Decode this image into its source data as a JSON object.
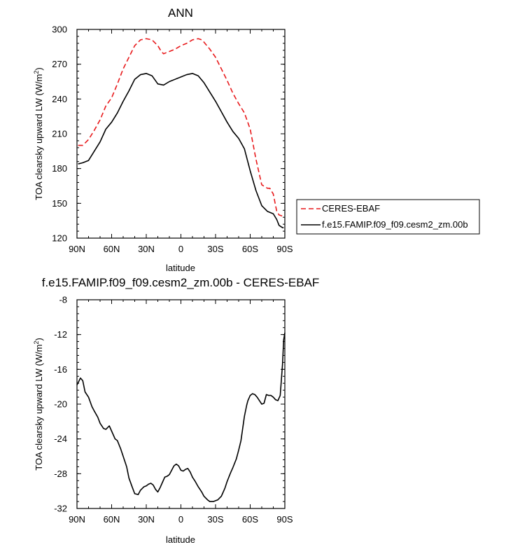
{
  "chart_data": [
    {
      "type": "line",
      "title": "ANN",
      "xlabel": "latitude",
      "ylabel_main": "TOA clearsky upward LW (W/m",
      "ylabel_sup": "2",
      "ylabel_tail": ")",
      "xlim": [
        90,
        -90
      ],
      "ylim": [
        120,
        300
      ],
      "xticks": [
        90,
        60,
        30,
        0,
        -30,
        -60,
        -90
      ],
      "xtick_labels": [
        "90N",
        "60N",
        "30N",
        "0",
        "30S",
        "60S",
        "90S"
      ],
      "yticks": [
        120,
        150,
        180,
        210,
        240,
        270,
        300
      ],
      "ytick_labels": [
        "120",
        "150",
        "180",
        "210",
        "240",
        "270",
        "300"
      ],
      "legend_placement": "right",
      "series": [
        {
          "name": "CERES-EBAF",
          "color": "#e8191b",
          "style": "dashed",
          "x": [
            89,
            85,
            80,
            75,
            70,
            65,
            60,
            55,
            50,
            45,
            40,
            35,
            30,
            25,
            20,
            17,
            15,
            10,
            5,
            0,
            -5,
            -10,
            -15,
            -18,
            -20,
            -25,
            -30,
            -35,
            -40,
            -45,
            -50,
            -55,
            -60,
            -65,
            -70,
            -75,
            -77,
            -80,
            -83,
            -85,
            -88,
            -89
          ],
          "values": [
            200,
            200,
            205,
            213,
            222,
            234,
            241,
            253,
            266,
            276,
            286,
            291,
            292,
            291,
            286,
            281,
            279,
            281,
            283,
            286,
            288,
            291,
            292,
            291,
            289,
            283,
            276,
            266,
            256,
            245,
            236,
            228,
            214,
            188,
            166,
            163,
            163,
            158,
            143,
            140,
            139,
            139
          ]
        },
        {
          "name": "f.e15.FAMIP.f09_f09.cesm2_zm.00b",
          "color": "#000000",
          "style": "solid",
          "x": [
            89,
            85,
            80,
            75,
            70,
            65,
            60,
            55,
            50,
            45,
            40,
            35,
            30,
            25,
            20,
            15,
            10,
            5,
            0,
            -5,
            -10,
            -15,
            -20,
            -25,
            -30,
            -35,
            -40,
            -45,
            -50,
            -55,
            -60,
            -65,
            -70,
            -75,
            -80,
            -83,
            -85,
            -88,
            -89
          ],
          "values": [
            184,
            185,
            187,
            195,
            203,
            214,
            220,
            228,
            238,
            247,
            257,
            261,
            262,
            260,
            253,
            252,
            255,
            257,
            259,
            261,
            262,
            260,
            254,
            246,
            238,
            229,
            220,
            212,
            206,
            197,
            178,
            161,
            148,
            143,
            141,
            136,
            131,
            129,
            129
          ]
        }
      ]
    },
    {
      "type": "line",
      "title": "f.e15.FAMIP.f09_f09.cesm2_zm.00b - CERES-EBAF",
      "xlabel": "latitude",
      "ylabel_main": "TOA clearsky upward LW (W/m",
      "ylabel_sup": "2",
      "ylabel_tail": ")",
      "xlim": [
        90,
        -90
      ],
      "ylim": [
        -32,
        -8
      ],
      "xticks": [
        90,
        60,
        30,
        0,
        -30,
        -60,
        -90
      ],
      "xtick_labels": [
        "90N",
        "60N",
        "30N",
        "0",
        "30S",
        "60S",
        "90S"
      ],
      "yticks": [
        -32,
        -28,
        -24,
        -20,
        -16,
        -12,
        -8
      ],
      "ytick_labels": [
        "-32",
        "-28",
        "-24",
        "-20",
        "-16",
        "-12",
        "-8"
      ],
      "series": [
        {
          "name": "",
          "color": "#000000",
          "style": "solid",
          "x": [
            90,
            87,
            85,
            83,
            80,
            77,
            75,
            72,
            70,
            67,
            65,
            62,
            60,
            57,
            55,
            52,
            50,
            47,
            45,
            42,
            40,
            37,
            35,
            32,
            30,
            28,
            26,
            24,
            22,
            20,
            18,
            16,
            14,
            12,
            10,
            8,
            6,
            4,
            2,
            0,
            -2,
            -4,
            -6,
            -8,
            -10,
            -12,
            -15,
            -18,
            -20,
            -23,
            -25,
            -28,
            -30,
            -32,
            -35,
            -38,
            -40,
            -43,
            -45,
            -48,
            -50,
            -52,
            -55,
            -57,
            -58,
            -60,
            -62,
            -64,
            -66,
            -68,
            -70,
            -72,
            -74,
            -76,
            -78,
            -80,
            -82,
            -84,
            -86,
            -87,
            -88,
            -89,
            -90
          ],
          "values": [
            -17.8,
            -17.0,
            -17.3,
            -18.6,
            -19.2,
            -20.3,
            -20.8,
            -21.5,
            -22.2,
            -22.8,
            -22.9,
            -22.5,
            -23.1,
            -24.0,
            -24.2,
            -25.2,
            -26.0,
            -27.2,
            -28.5,
            -29.6,
            -30.3,
            -30.4,
            -29.9,
            -29.5,
            -29.4,
            -29.2,
            -29.1,
            -29.3,
            -29.8,
            -30.1,
            -29.6,
            -29.0,
            -28.4,
            -28.3,
            -28.1,
            -27.6,
            -27.1,
            -26.9,
            -27.1,
            -27.6,
            -27.7,
            -27.5,
            -27.4,
            -27.8,
            -28.4,
            -28.8,
            -29.5,
            -30.1,
            -30.6,
            -31.0,
            -31.2,
            -31.2,
            -31.1,
            -31.0,
            -30.6,
            -29.7,
            -28.9,
            -27.9,
            -27.3,
            -26.3,
            -25.3,
            -24.2,
            -21.4,
            -20.1,
            -19.6,
            -19.0,
            -18.8,
            -18.9,
            -19.2,
            -19.6,
            -20.0,
            -19.9,
            -18.9,
            -19.0,
            -19.0,
            -19.2,
            -19.5,
            -19.6,
            -19.0,
            -17.2,
            -15.4,
            -12.6,
            -11.8
          ]
        }
      ]
    }
  ]
}
